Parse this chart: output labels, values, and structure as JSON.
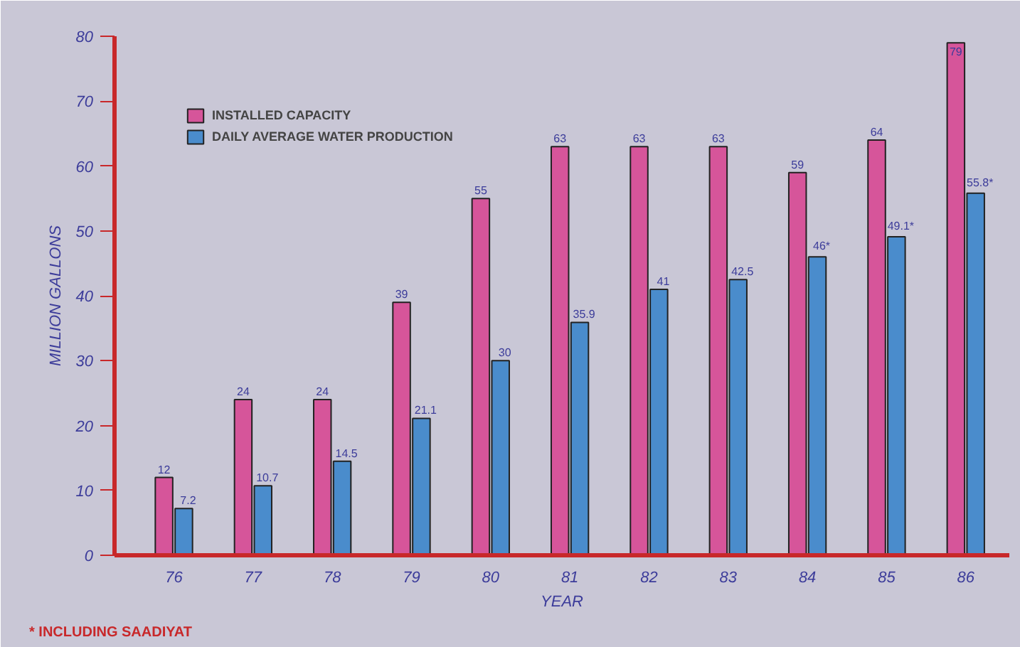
{
  "chart_data": {
    "type": "bar",
    "categories": [
      "76",
      "77",
      "78",
      "79",
      "80",
      "81",
      "82",
      "83",
      "84",
      "85",
      "86"
    ],
    "series": [
      {
        "name": "INSTALLED CAPACITY",
        "color": "#d6559a",
        "values": [
          12,
          24,
          24,
          39,
          55,
          63,
          63,
          63,
          59,
          64,
          79
        ]
      },
      {
        "name": "DAILY AVERAGE WATER PRODUCTION",
        "color": "#4a8ccc",
        "values": [
          7.2,
          10.7,
          14.5,
          21.1,
          30,
          35.9,
          41,
          42.5,
          46,
          49.1,
          55.8
        ],
        "value_labels": [
          "7.2",
          "10.7",
          "14.5",
          "21.1",
          "30",
          "35.9",
          "41",
          "42.5",
          "46*",
          "49.1*",
          "55.8*"
        ]
      }
    ],
    "ylim": [
      0,
      80
    ],
    "yticks": [
      0,
      10,
      20,
      30,
      40,
      50,
      60,
      70,
      80
    ],
    "xlabel": "YEAR",
    "ylabel": "MILLION GALLONS",
    "data_labels": true,
    "legend": "top left",
    "grid": false,
    "annotations": [
      "* INCLUDING SAADIYAT"
    ]
  }
}
